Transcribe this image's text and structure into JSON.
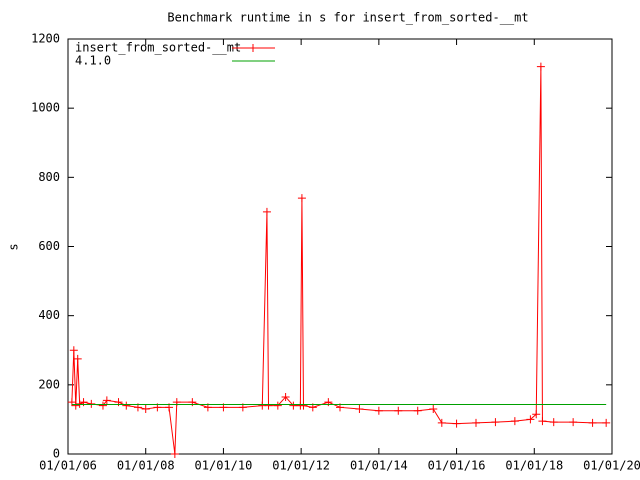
{
  "chart_data": {
    "type": "line",
    "title": "Benchmark runtime in s for insert_from_sorted-__mt",
    "y_label": "s",
    "xlim": [
      2006,
      2020
    ],
    "xticks": [
      {
        "value": 2006,
        "label": "01/01/06"
      },
      {
        "value": 2008,
        "label": "01/01/08"
      },
      {
        "value": 2010,
        "label": "01/01/10"
      },
      {
        "value": 2012,
        "label": "01/01/12"
      },
      {
        "value": 2014,
        "label": "01/01/14"
      },
      {
        "value": 2016,
        "label": "01/01/16"
      },
      {
        "value": 2018,
        "label": "01/01/18"
      },
      {
        "value": 2020,
        "label": "01/01/20"
      }
    ],
    "ylim": [
      0,
      1200
    ],
    "yticks": [
      0,
      200,
      400,
      600,
      800,
      1000,
      1200
    ],
    "legend": "top-left",
    "series": [
      {
        "name": "insert_from_sorted-__mt",
        "color": "#ff0000",
        "markers": true,
        "x": [
          2006.1,
          2006.15,
          2006.2,
          2006.25,
          2006.3,
          2006.4,
          2006.6,
          2006.9,
          2007.0,
          2007.3,
          2007.5,
          2007.8,
          2008.0,
          2008.3,
          2008.6,
          2008.75,
          2008.8,
          2009.2,
          2009.6,
          2010.0,
          2010.5,
          2011.0,
          2011.12,
          2011.16,
          2011.4,
          2011.6,
          2011.8,
          2011.98,
          2012.02,
          2012.06,
          2012.3,
          2012.7,
          2013.0,
          2013.5,
          2014.0,
          2014.5,
          2015.0,
          2015.4,
          2015.62,
          2016.0,
          2016.5,
          2017.0,
          2017.5,
          2017.9,
          2018.05,
          2018.17,
          2018.21,
          2018.5,
          2019.0,
          2019.5,
          2019.85
        ],
        "values": [
          150,
          300,
          140,
          275,
          145,
          150,
          145,
          140,
          155,
          150,
          140,
          135,
          130,
          135,
          135,
          0,
          150,
          150,
          135,
          135,
          135,
          140,
          700,
          140,
          140,
          165,
          140,
          140,
          740,
          140,
          135,
          150,
          135,
          130,
          125,
          125,
          125,
          130,
          90,
          88,
          90,
          92,
          95,
          100,
          115,
          1120,
          95,
          92,
          92,
          90,
          90
        ]
      },
      {
        "name": "4.1.0",
        "color": "#00a000",
        "markers": false,
        "x": [
          2006.1,
          2019.85
        ],
        "values": [
          143,
          143
        ]
      }
    ]
  }
}
